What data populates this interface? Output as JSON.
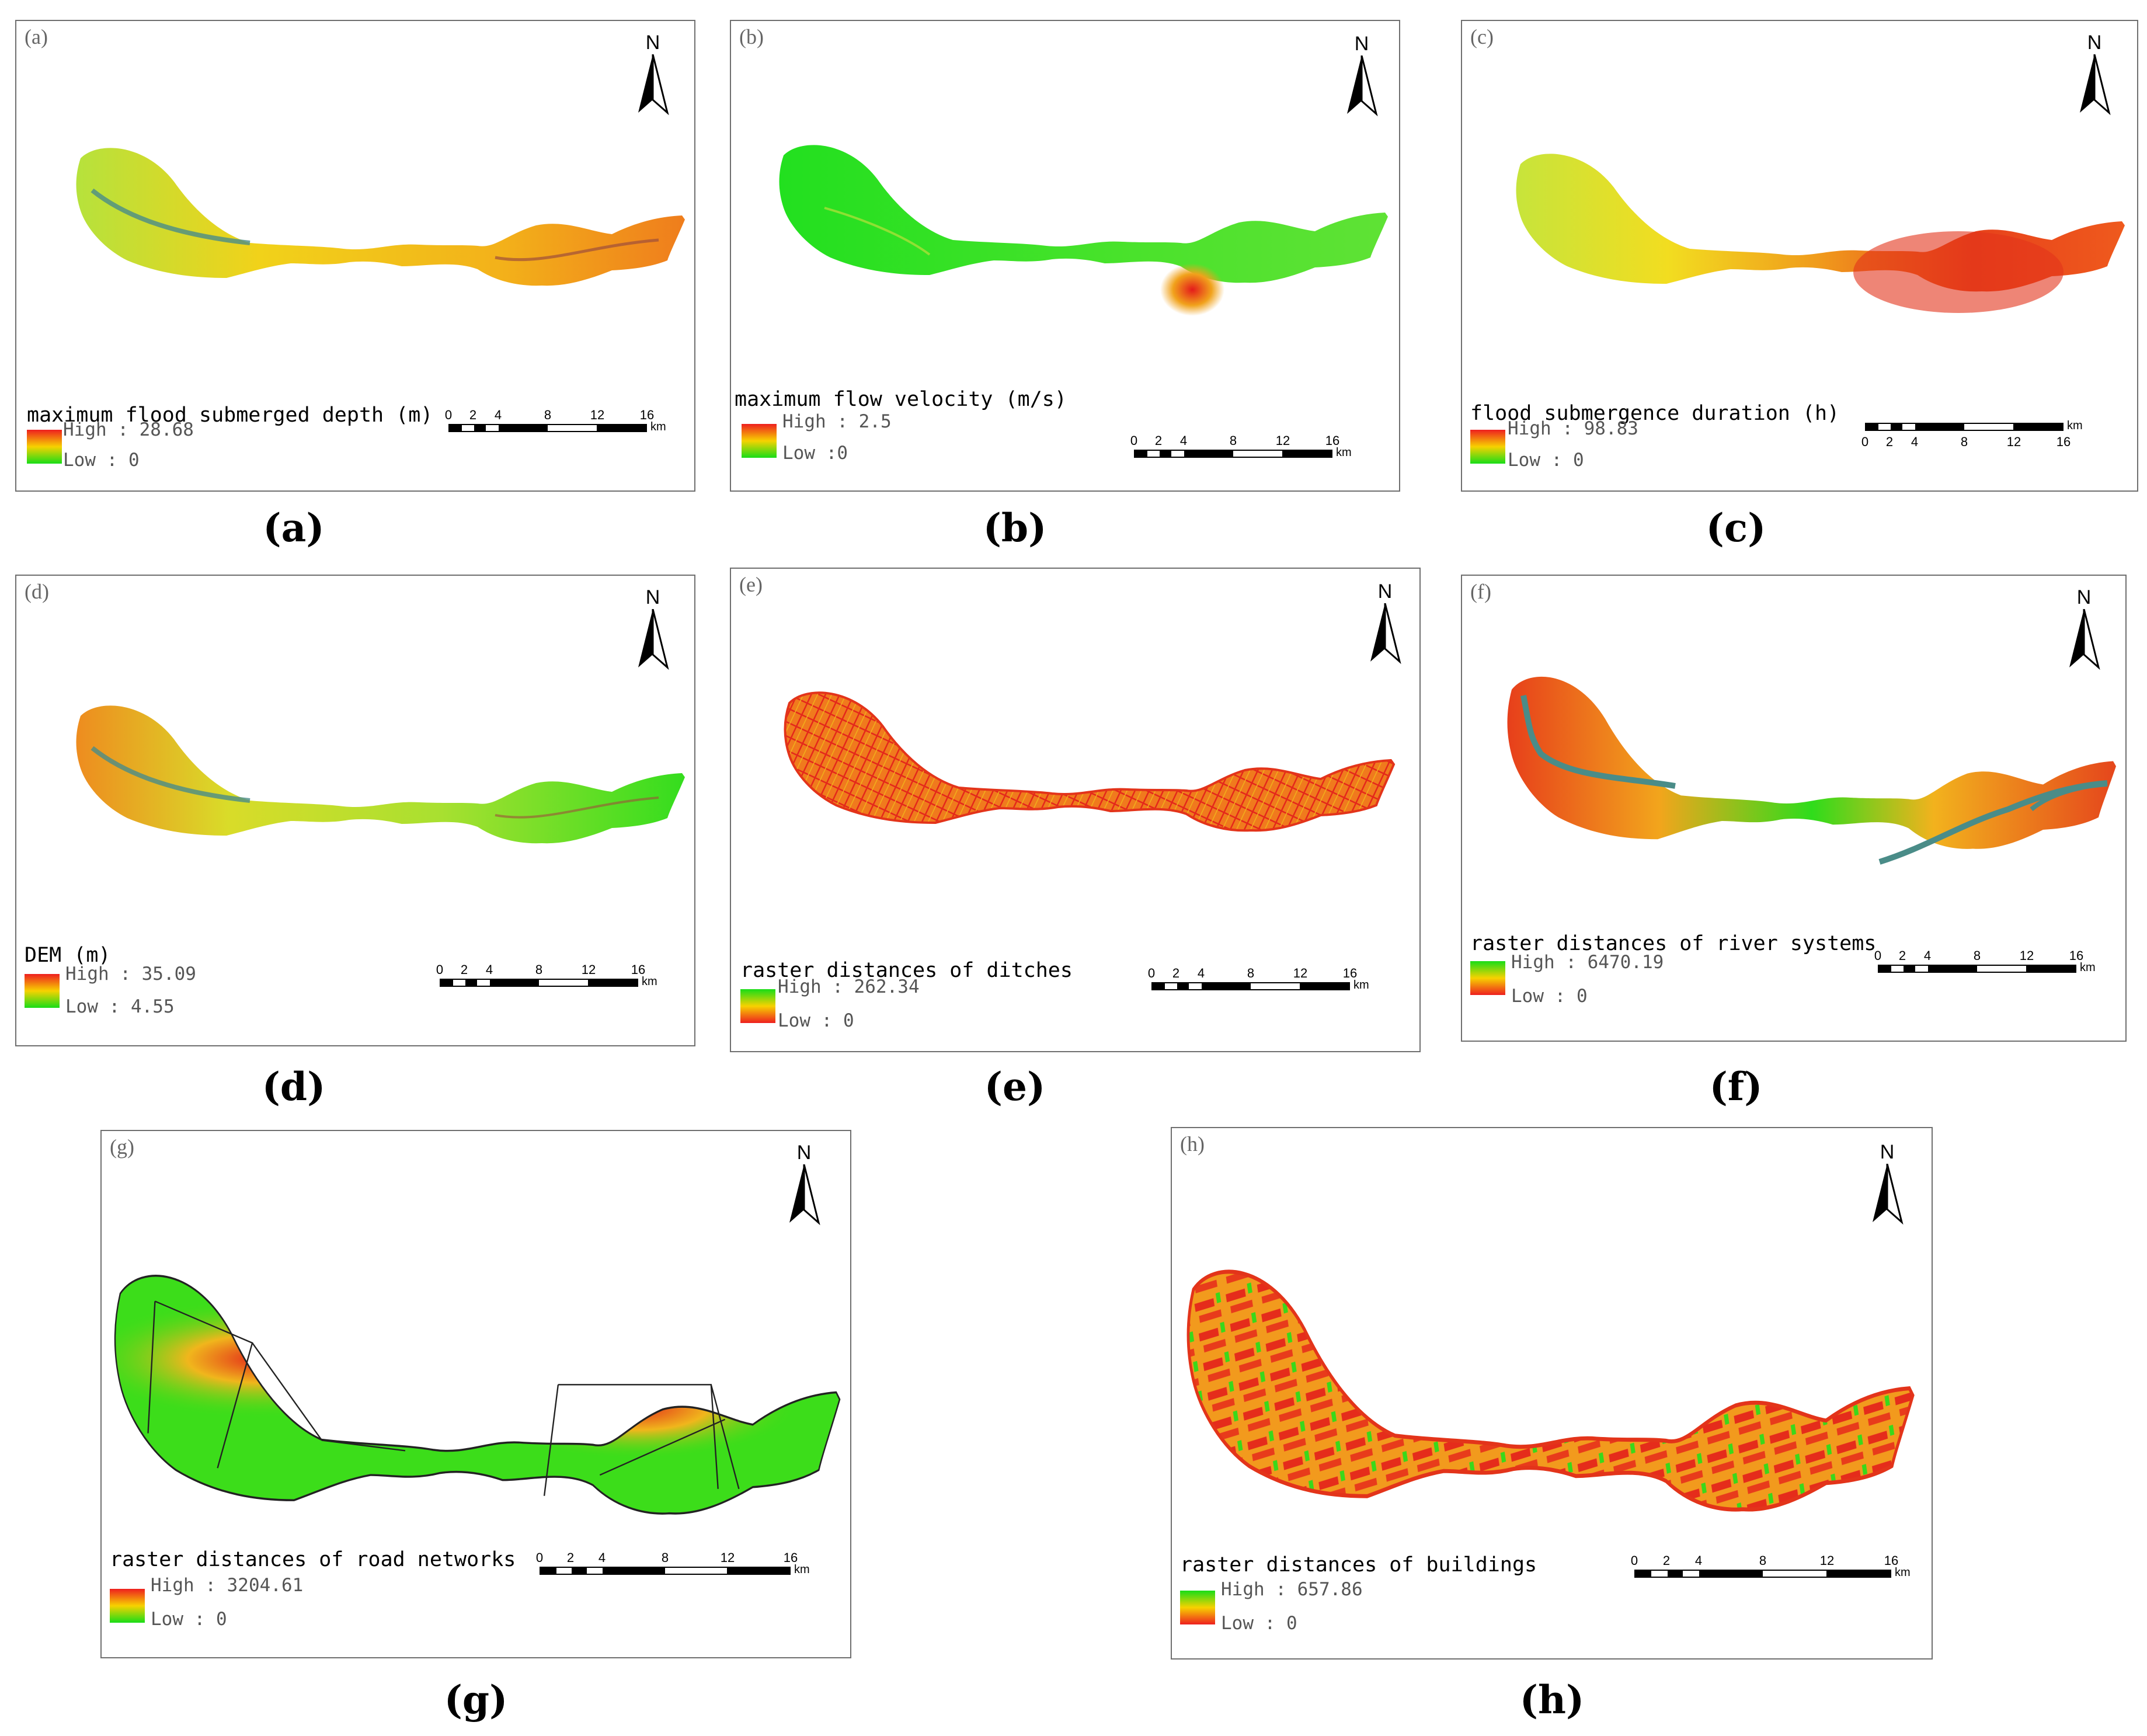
{
  "figure": {
    "north_label": "N",
    "scale": {
      "ticks": [
        "0",
        "2",
        "4",
        "8",
        "12",
        "16"
      ],
      "unit": "km"
    },
    "colors": {
      "high_red": "#ee1f1f",
      "mid_yellow": "#f7d200",
      "low_green": "#18dd18",
      "river_teal": "#4a8c88"
    }
  },
  "panels": [
    {
      "corner": "(a)",
      "caption": "(a)",
      "title": "maximum flood submerged depth (m)",
      "high": "High : 28.68",
      "low": "Low : 0",
      "scheme": "r2g"
    },
    {
      "corner": "(b)",
      "caption": "(b)",
      "title": "maximum flow velocity (m/s)",
      "high": "High : 2.5",
      "low": "Low :0",
      "scheme": "r2g"
    },
    {
      "corner": "(c)",
      "caption": "(c)",
      "title": "flood submergence duration (h)",
      "high": "High : 98.83",
      "low": "Low : 0",
      "scheme": "r2g"
    },
    {
      "corner": "(d)",
      "caption": "(d)",
      "title": "DEM (m)",
      "high": "High : 35.09",
      "low": "Low : 4.55",
      "scheme": "r2g"
    },
    {
      "corner": "(e)",
      "caption": "(e)",
      "title": "raster distances of ditches",
      "high": "High : 262.34",
      "low": "Low : 0",
      "scheme": "g2r"
    },
    {
      "corner": "(f)",
      "caption": "(f)",
      "title": "raster distances of river systems",
      "high": "High : 6470.19",
      "low": "Low : 0",
      "scheme": "g2r"
    },
    {
      "corner": "(g)",
      "caption": "(g)",
      "title": "raster distances of road networks",
      "high": "High : 3204.61",
      "low": "Low : 0",
      "scheme": "r2g"
    },
    {
      "corner": "(h)",
      "caption": "(h)",
      "title": "raster distances of buildings",
      "high": "High : 657.86",
      "low": "Low : 0",
      "scheme": "g2r"
    }
  ]
}
